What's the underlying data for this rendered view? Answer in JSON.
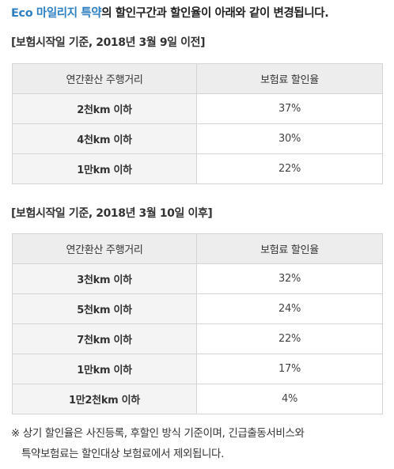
{
  "headline": {
    "highlight": "Eco 마일리지 특약",
    "rest": "의 할인구간과 할인율이 아래와 같이 변경됩니다.",
    "highlight_color": "#2e7fc1"
  },
  "sections": [
    {
      "title": "[보험시작일 기준, 2018년 3월 9일 이전]",
      "headers": [
        "연간환산 주행거리",
        "보험료 할인율"
      ],
      "rows": [
        {
          "distance": "2천km 이하",
          "rate": "37%"
        },
        {
          "distance": "4천km 이하",
          "rate": "30%"
        },
        {
          "distance": "1만km 이하",
          "rate": "22%"
        }
      ]
    },
    {
      "title": "[보험시작일 기준, 2018년 3월 10일 이후]",
      "headers": [
        "연간환산 주행거리",
        "보험료 할인율"
      ],
      "rows": [
        {
          "distance": "3천km 이하",
          "rate": "32%"
        },
        {
          "distance": "5천km 이하",
          "rate": "24%"
        },
        {
          "distance": "7천km 이하",
          "rate": "22%"
        },
        {
          "distance": "1만km 이하",
          "rate": "17%"
        },
        {
          "distance": "1만2천km 이하",
          "rate": "4%"
        }
      ]
    }
  ],
  "footnote": {
    "line1": "※ 상기 할인율은 사진등록, 후할인 방식 기준이며, 긴급출동서비스와",
    "line2": "특약보험료는 할인대상 보험료에서 제외됩니다."
  }
}
